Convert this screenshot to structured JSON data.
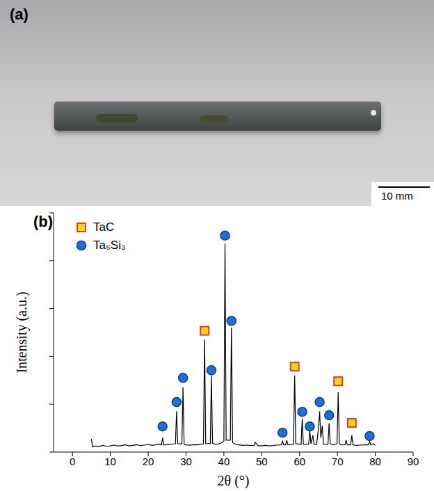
{
  "photo": {
    "panel": "(a)",
    "scale_bar": "10 mm"
  },
  "chart_data": {
    "type": "line",
    "panel": "(b)",
    "xlabel": "2θ (°)",
    "ylabel": "Intensity (a.u.)",
    "color": "#000000",
    "xlim": [
      -5,
      90
    ],
    "xticks": [
      0,
      10,
      20,
      30,
      40,
      50,
      60,
      70,
      80,
      90
    ],
    "ylim": [
      0,
      100
    ],
    "yticks": [
      0,
      20,
      40,
      60,
      80,
      100
    ],
    "tick_labels": "x",
    "grid": false,
    "legend": "upper left",
    "x": [
      5,
      5.3,
      6,
      7,
      8,
      9,
      10,
      11,
      12,
      13,
      14,
      15,
      16,
      17,
      18,
      19,
      20,
      21,
      22,
      23,
      23.5,
      23.8,
      24.1,
      25,
      26,
      27.2,
      27.5,
      27.8,
      28.9,
      29.2,
      29.5,
      30,
      31,
      32,
      33,
      34.6,
      34.9,
      35.2,
      36.4,
      36.7,
      37,
      38,
      39,
      40,
      40.3,
      40.6,
      41.7,
      42,
      42.3,
      43,
      44,
      45,
      46,
      47,
      48,
      48.3,
      49,
      50,
      51,
      52,
      53,
      54,
      55.2,
      55.5,
      55.8,
      56.3,
      56.6,
      56.9,
      58.4,
      58.7,
      59,
      60.4,
      60.7,
      61,
      62.4,
      62.7,
      63,
      63.5,
      63.8,
      64.5,
      65,
      65.3,
      65.6,
      66,
      66.3,
      67.5,
      67.8,
      68.1,
      69,
      69.9,
      70.2,
      70.5,
      71,
      72,
      72.3,
      72.6,
      73.5,
      73.8,
      74.1,
      75,
      76,
      77,
      78.2,
      78.5,
      78.8,
      79.5,
      80
    ],
    "values": [
      5.5,
      2.2,
      2.5,
      2.3,
      2.8,
      2.4,
      2.6,
      2.9,
      2.5,
      2.7,
      3.0,
      2.6,
      2.8,
      3.1,
      2.7,
      2.9,
      3.2,
      2.8,
      3.0,
      3.3,
      3.0,
      6,
      3.0,
      3.1,
      3.3,
      3.4,
      17,
      3.5,
      3.4,
      27,
      3.3,
      3.0,
      2.9,
      3.1,
      3.0,
      3.4,
      47,
      3.6,
      3.5,
      32,
      3.6,
      3.2,
      3.5,
      4.5,
      87,
      5,
      5,
      52,
      4,
      3.2,
      3.0,
      2.8,
      2.9,
      2.7,
      2.8,
      4,
      2.7,
      2.6,
      2.8,
      2.6,
      2.7,
      2.9,
      3,
      4.5,
      3,
      3,
      5,
      3,
      3.2,
      32,
      3.5,
      3.2,
      14,
      3.3,
      3.2,
      9,
      3.4,
      7,
      3.3,
      3.2,
      10,
      17,
      6,
      11,
      3.3,
      3.2,
      12,
      3.4,
      3.1,
      3.5,
      25,
      3.6,
      3.0,
      3.1,
      5,
      3.0,
      3.0,
      7,
      3.0,
      2.8,
      2.9,
      3.0,
      3.0,
      4.5,
      3.0,
      3.5,
      2.8
    ],
    "series": [
      {
        "name": "TaC",
        "type": "scatter",
        "marker": "square",
        "color": "#ffd21f",
        "x": [
          34.9,
          58.7,
          70.2,
          73.8
        ],
        "values": [
          50.7,
          35.7,
          29.6,
          12.2
        ]
      },
      {
        "name": "Ta₅Si₃",
        "type": "scatter",
        "marker": "circle",
        "color": "#1e6fd9",
        "x": [
          23.8,
          27.5,
          29.2,
          36.7,
          40.3,
          42,
          55.5,
          60.7,
          62.7,
          65.3,
          67.8,
          78.5
        ],
        "values": [
          10.7,
          20.9,
          31,
          34.2,
          90.5,
          54.8,
          8.1,
          16.8,
          10.7,
          20.9,
          15.4,
          6.7
        ]
      }
    ]
  }
}
